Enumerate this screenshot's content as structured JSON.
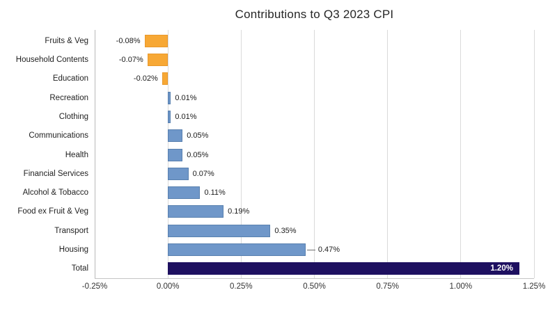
{
  "chart_data": {
    "type": "bar",
    "orientation": "horizontal",
    "title": "Contributions to Q3 2023 CPI",
    "categories": [
      "Fruits & Veg",
      "Household Contents",
      "Education",
      "Recreation",
      "Clothing",
      "Communications",
      "Health",
      "Financial Services",
      "Alcohol & Tobacco",
      "Food ex Fruit & Veg",
      "Transport",
      "Housing",
      "Total"
    ],
    "values": [
      -0.08,
      -0.07,
      -0.02,
      0.01,
      0.01,
      0.05,
      0.05,
      0.07,
      0.11,
      0.19,
      0.35,
      0.47,
      1.2
    ],
    "value_labels": [
      "-0.08%",
      "-0.07%",
      "-0.02%",
      "0.01%",
      "0.01%",
      "0.05%",
      "0.05%",
      "0.07%",
      "0.11%",
      "0.19%",
      "0.35%",
      "0.47%",
      "1.20%"
    ],
    "xlabel": "",
    "ylabel": "",
    "xlim": [
      -0.25,
      1.25
    ],
    "x_tick_values": [
      -0.25,
      0,
      0.25,
      0.5,
      0.75,
      1.0,
      1.25
    ],
    "x_tick_labels": [
      "-0.25%",
      "0.00%",
      "0.25%",
      "0.50%",
      "0.75%",
      "1.00%",
      "1.25%"
    ],
    "grid": "vertical",
    "legend": false,
    "label_inside_categories": [
      "Total"
    ],
    "leader_line_categories": [
      "Housing"
    ],
    "colors": {
      "negative_bar": "#F7A835",
      "negative_bar_border": "#E9982B",
      "positive_bar": "#6F97C9",
      "positive_bar_border": "#5880AF",
      "total_bar": "#1E1060",
      "gridline": "#DADADA",
      "left_axis_line": "#B8B8B8",
      "bottom_axis_line": "#C4C4C4",
      "text": "#1F1F1F",
      "inside_label_text": "#FFFFFF"
    }
  }
}
